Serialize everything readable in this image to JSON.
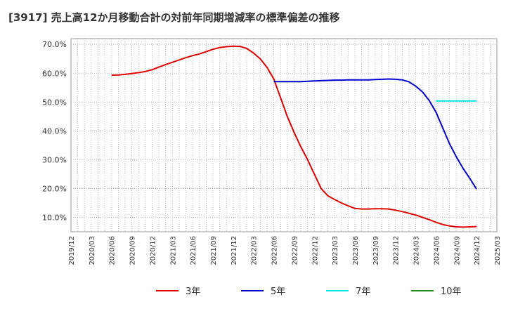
{
  "chart_data": {
    "type": "line",
    "title": "[3917]  売上高12か月移動合計の対前年同期増減率の標準偏差の推移",
    "xlabel": "",
    "ylabel": "",
    "ylim": [
      5,
      72
    ],
    "y_ticks": [
      10,
      20,
      30,
      40,
      50,
      60,
      70
    ],
    "y_tick_labels": [
      "10.0%",
      "20.0%",
      "30.0%",
      "40.0%",
      "50.0%",
      "60.0%",
      "70.0%"
    ],
    "x_ticks": [
      "2019/12",
      "2020/03",
      "2020/06",
      "2020/09",
      "2020/12",
      "2021/03",
      "2021/06",
      "2021/09",
      "2021/12",
      "2022/03",
      "2022/06",
      "2022/09",
      "2022/12",
      "2023/03",
      "2023/06",
      "2023/09",
      "2023/12",
      "2024/03",
      "2024/06",
      "2024/09",
      "2024/12",
      "2025/03"
    ],
    "grid": true,
    "legend_position": "bottom",
    "series": [
      {
        "name": "3年",
        "color": "#dd0000",
        "points": [
          [
            "2020/06",
            59.3
          ],
          [
            "2020/07",
            59.4
          ],
          [
            "2020/08",
            59.6
          ],
          [
            "2020/09",
            59.9
          ],
          [
            "2020/10",
            60.2
          ],
          [
            "2020/11",
            60.6
          ],
          [
            "2020/12",
            61.2
          ],
          [
            "2021/01",
            62.1
          ],
          [
            "2021/02",
            63.0
          ],
          [
            "2021/03",
            63.8
          ],
          [
            "2021/04",
            64.6
          ],
          [
            "2021/05",
            65.4
          ],
          [
            "2021/06",
            66.1
          ],
          [
            "2021/07",
            66.7
          ],
          [
            "2021/08",
            67.5
          ],
          [
            "2021/09",
            68.3
          ],
          [
            "2021/10",
            68.9
          ],
          [
            "2021/11",
            69.2
          ],
          [
            "2021/12",
            69.4
          ],
          [
            "2022/01",
            69.3
          ],
          [
            "2022/02",
            68.6
          ],
          [
            "2022/03",
            67.0
          ],
          [
            "2022/04",
            65.0
          ],
          [
            "2022/05",
            62.0
          ],
          [
            "2022/06",
            58.0
          ],
          [
            "2022/07",
            51.5
          ],
          [
            "2022/08",
            45.0
          ],
          [
            "2022/09",
            39.5
          ],
          [
            "2022/10",
            34.5
          ],
          [
            "2022/11",
            30.0
          ],
          [
            "2022/12",
            25.0
          ],
          [
            "2023/01",
            20.0
          ],
          [
            "2023/02",
            17.5
          ],
          [
            "2023/03",
            16.2
          ],
          [
            "2023/04",
            15.0
          ],
          [
            "2023/05",
            14.0
          ],
          [
            "2023/06",
            13.1
          ],
          [
            "2023/07",
            12.9
          ],
          [
            "2023/08",
            12.9
          ],
          [
            "2023/09",
            13.0
          ],
          [
            "2023/10",
            13.0
          ],
          [
            "2023/11",
            12.9
          ],
          [
            "2023/12",
            12.5
          ],
          [
            "2024/01",
            12.0
          ],
          [
            "2024/02",
            11.4
          ],
          [
            "2024/03",
            10.8
          ],
          [
            "2024/04",
            10.0
          ],
          [
            "2024/05",
            9.2
          ],
          [
            "2024/06",
            8.3
          ],
          [
            "2024/07",
            7.5
          ],
          [
            "2024/08",
            7.0
          ],
          [
            "2024/09",
            6.7
          ],
          [
            "2024/10",
            6.6
          ],
          [
            "2024/11",
            6.7
          ],
          [
            "2024/12",
            6.8
          ]
        ]
      },
      {
        "name": "5年",
        "color": "#0000cc",
        "points": [
          [
            "2022/06",
            57.1
          ],
          [
            "2022/07",
            57.1
          ],
          [
            "2022/08",
            57.1
          ],
          [
            "2022/09",
            57.1
          ],
          [
            "2022/10",
            57.1
          ],
          [
            "2022/11",
            57.2
          ],
          [
            "2022/12",
            57.3
          ],
          [
            "2023/01",
            57.4
          ],
          [
            "2023/02",
            57.5
          ],
          [
            "2023/03",
            57.6
          ],
          [
            "2023/04",
            57.6
          ],
          [
            "2023/05",
            57.7
          ],
          [
            "2023/06",
            57.7
          ],
          [
            "2023/07",
            57.7
          ],
          [
            "2023/08",
            57.7
          ],
          [
            "2023/09",
            57.8
          ],
          [
            "2023/10",
            57.9
          ],
          [
            "2023/11",
            58.0
          ],
          [
            "2023/12",
            57.9
          ],
          [
            "2024/01",
            57.7
          ],
          [
            "2024/02",
            57.0
          ],
          [
            "2024/03",
            55.5
          ],
          [
            "2024/04",
            53.5
          ],
          [
            "2024/05",
            50.5
          ],
          [
            "2024/06",
            46.5
          ],
          [
            "2024/07",
            41.0
          ],
          [
            "2024/08",
            35.5
          ],
          [
            "2024/09",
            31.0
          ],
          [
            "2024/10",
            27.0
          ],
          [
            "2024/11",
            23.5
          ],
          [
            "2024/12",
            19.8
          ]
        ]
      },
      {
        "name": "7年",
        "color": "#00e5e5",
        "points": [
          [
            "2024/06",
            50.4
          ],
          [
            "2024/07",
            50.4
          ],
          [
            "2024/08",
            50.4
          ],
          [
            "2024/09",
            50.4
          ],
          [
            "2024/10",
            50.4
          ],
          [
            "2024/11",
            50.4
          ],
          [
            "2024/12",
            50.4
          ]
        ]
      },
      {
        "name": "10年",
        "color": "#228b22",
        "points": []
      }
    ]
  }
}
